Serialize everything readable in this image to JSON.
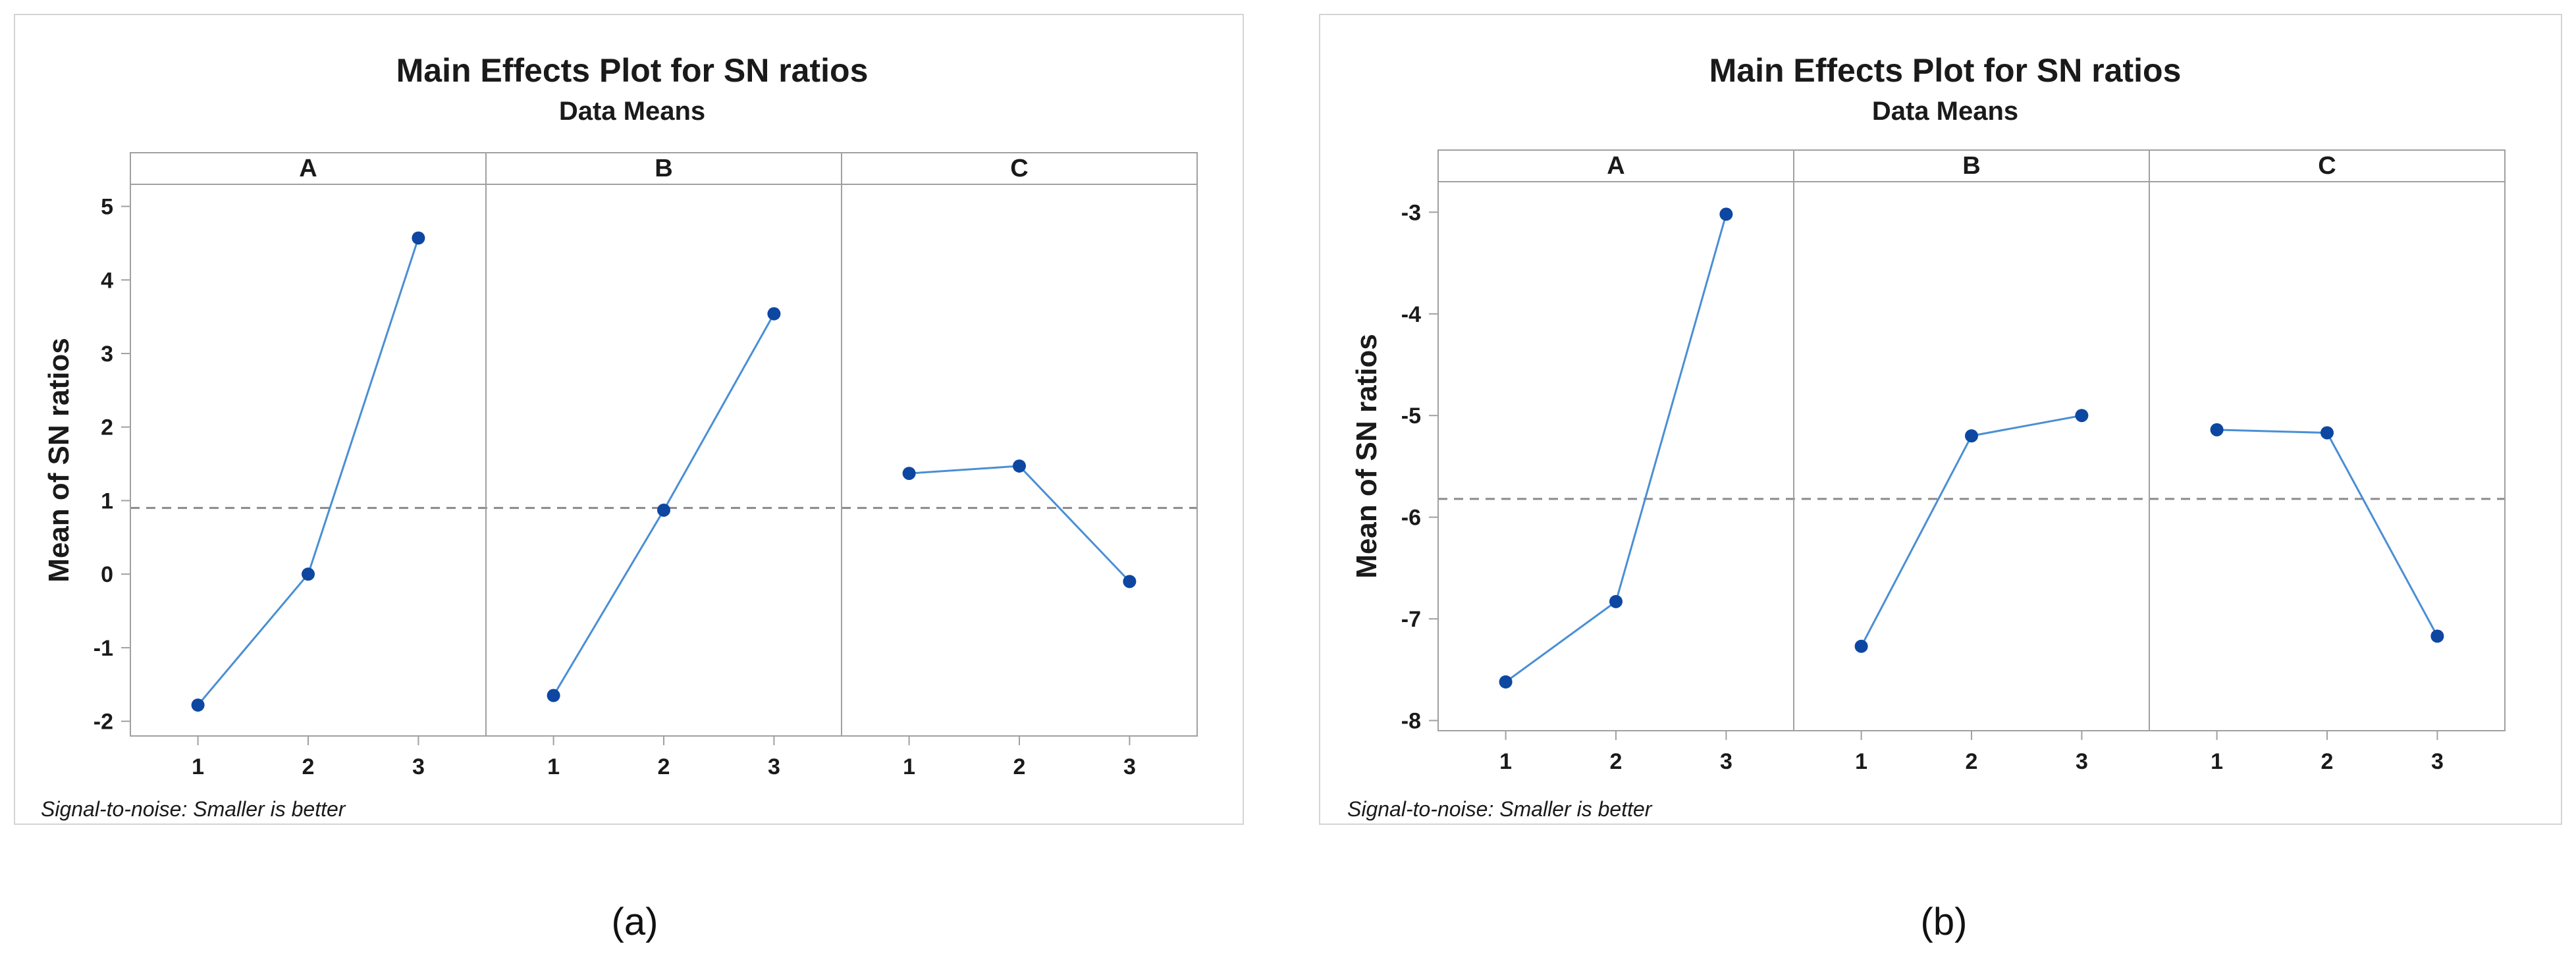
{
  "chart_data": [
    {
      "type": "line",
      "title": "Main Effects Plot for SN ratios",
      "subtitle": "Data Means",
      "ylabel": "Mean of SN ratios",
      "xlabel": "",
      "footnote": "Signal-to-noise: Smaller is better",
      "caption": "(a)",
      "ylim": [
        -2.2,
        5.3
      ],
      "yticks": [
        -2,
        -1,
        0,
        1,
        2,
        3,
        4,
        5
      ],
      "ytick_labels": [
        "-2",
        "-1",
        "0",
        "1",
        "2",
        "3",
        "4",
        "5"
      ],
      "reference_line": 0.9,
      "colors": {
        "series": "#4a8fd4",
        "marker": "#0d47a1",
        "reference": "#8a8a8a",
        "frame": "#a0a0a0"
      },
      "facets": [
        {
          "name": "A",
          "categories": [
            "1",
            "2",
            "3"
          ],
          "values": [
            -1.78,
            0.0,
            4.57
          ]
        },
        {
          "name": "B",
          "categories": [
            "1",
            "2",
            "3"
          ],
          "values": [
            -1.65,
            0.87,
            3.54
          ]
        },
        {
          "name": "C",
          "categories": [
            "1",
            "2",
            "3"
          ],
          "values": [
            1.37,
            1.47,
            -0.1
          ]
        }
      ]
    },
    {
      "type": "line",
      "title": "Main Effects Plot for SN ratios",
      "subtitle": "Data Means",
      "ylabel": "Mean of SN ratios",
      "xlabel": "",
      "footnote": "Signal-to-noise: Smaller is better",
      "caption": "(b)",
      "ylim": [
        -8.1,
        -2.7
      ],
      "yticks": [
        -8,
        -7,
        -6,
        -5,
        -4,
        -3
      ],
      "ytick_labels": [
        "-8",
        "-7",
        "-6",
        "-5",
        "-4",
        "-3"
      ],
      "reference_line": -5.82,
      "colors": {
        "series": "#4a8fd4",
        "marker": "#0d47a1",
        "reference": "#8a8a8a",
        "frame": "#a0a0a0"
      },
      "facets": [
        {
          "name": "A",
          "categories": [
            "1",
            "2",
            "3"
          ],
          "values": [
            -7.62,
            -6.83,
            -3.02
          ]
        },
        {
          "name": "B",
          "categories": [
            "1",
            "2",
            "3"
          ],
          "values": [
            -7.27,
            -5.2,
            -5.0
          ]
        },
        {
          "name": "C",
          "categories": [
            "1",
            "2",
            "3"
          ],
          "values": [
            -5.14,
            -5.17,
            -7.17
          ]
        }
      ]
    }
  ]
}
